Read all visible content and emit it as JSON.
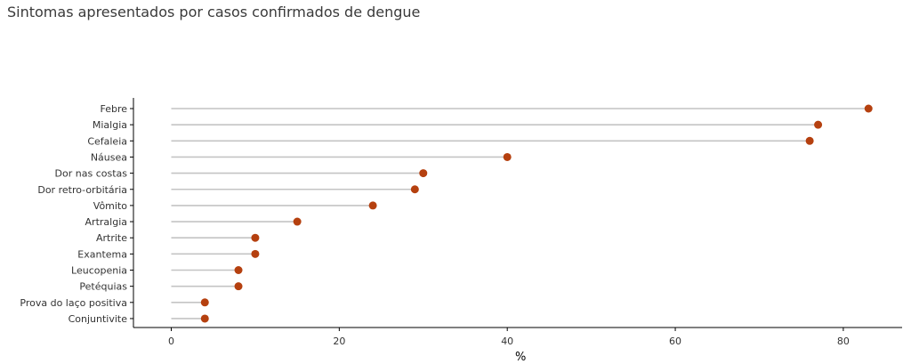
{
  "chart_data": {
    "type": "lollipop",
    "title": "Sintomas apresentados por casos confirmados de dengue",
    "xlabel": "%",
    "ylabel": "",
    "xlim": [
      -4.5,
      87
    ],
    "x_ticks": [
      0,
      20,
      40,
      60,
      80
    ],
    "categories": [
      "Febre",
      "Mialgia",
      "Cefaleia",
      "Náusea",
      "Dor nas costas",
      "Dor retro-orbitária",
      "Vômito",
      "Artralgia",
      "Artrite",
      "Exantema",
      "Leucopenia",
      "Petéquias",
      "Prova do laço positiva",
      "Conjuntivite"
    ],
    "values": [
      83,
      77,
      76,
      40,
      30,
      29,
      24,
      15,
      10,
      10,
      8,
      8,
      4,
      4
    ],
    "colors": {
      "point": "#b5400f",
      "stem": "#c4c4c4",
      "axis": "#000000"
    },
    "grid": false,
    "legend": "none"
  }
}
